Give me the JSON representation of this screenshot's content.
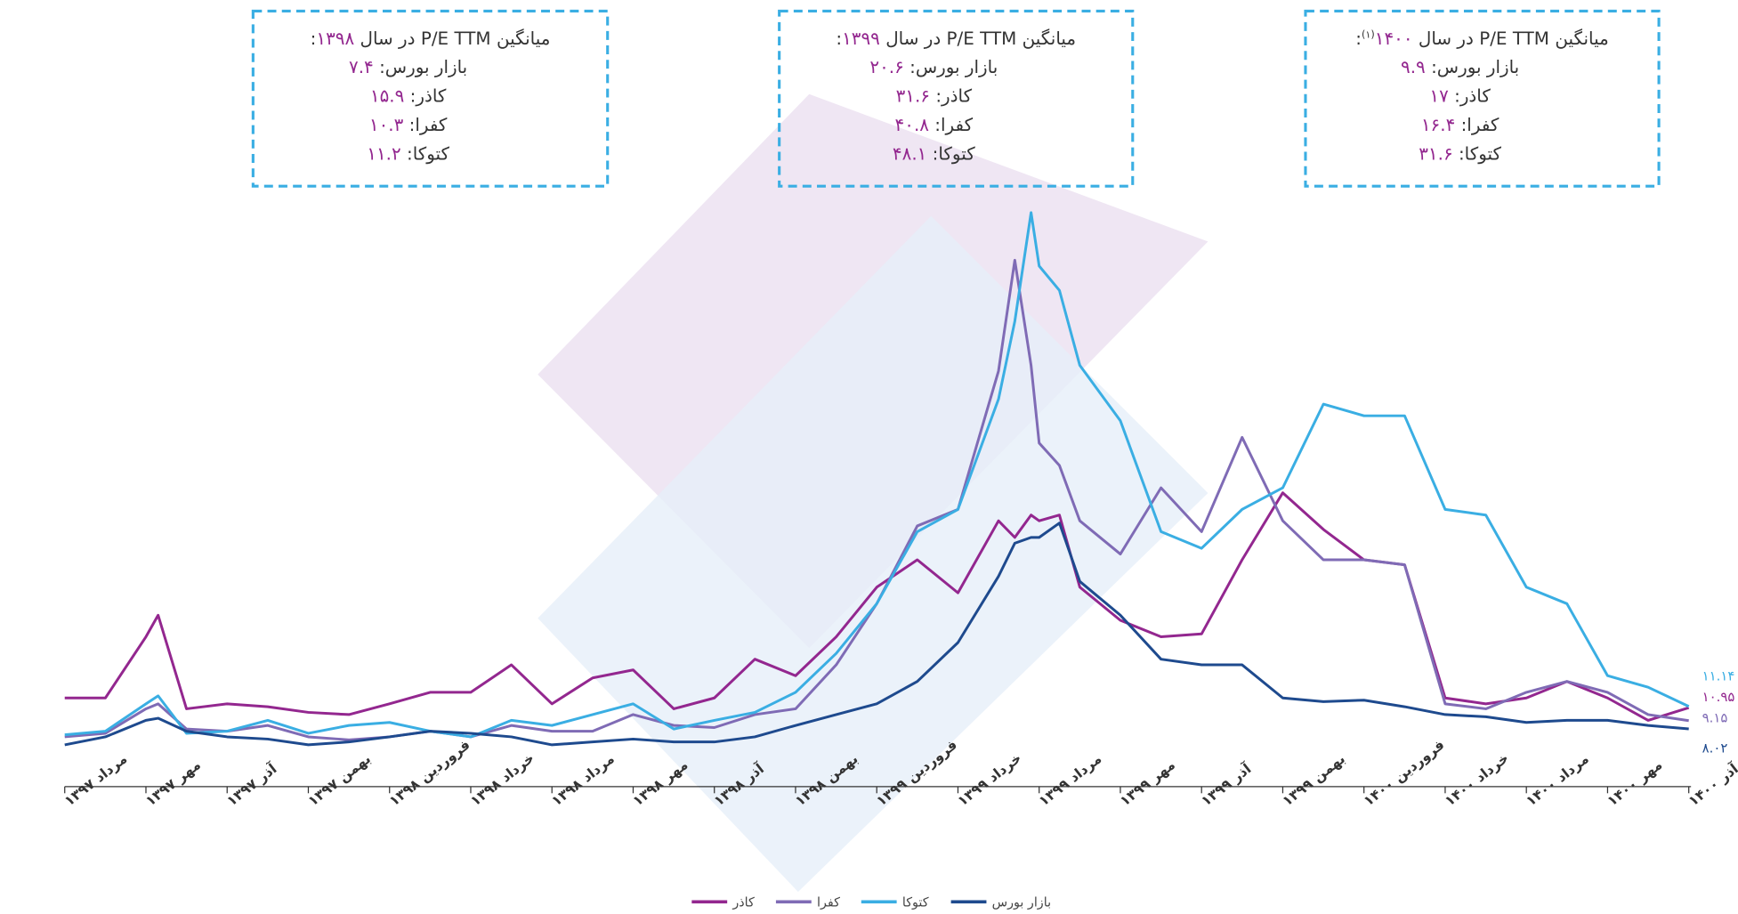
{
  "chart_data": {
    "type": "line",
    "x": [
      0,
      1,
      2,
      2.3,
      3,
      4,
      5,
      6,
      7,
      8,
      9,
      10,
      11,
      12,
      13,
      14,
      15,
      16,
      17,
      18,
      19,
      20,
      21,
      22,
      23,
      23.4,
      23.8,
      24,
      24.5,
      25,
      26,
      27,
      28,
      29,
      30,
      31,
      32,
      33,
      34,
      35,
      36,
      37,
      38,
      39,
      40
    ],
    "xlim": [
      0,
      40
    ],
    "ylim": [
      0,
      85
    ],
    "xticks": [
      {
        "value": 0,
        "label": "مرداد ۱۳۹۷"
      },
      {
        "value": 2,
        "label": "مهر ۱۳۹۷"
      },
      {
        "value": 4,
        "label": "آذر ۱۳۹۷"
      },
      {
        "value": 6,
        "label": "بهمن ۱۳۹۷"
      },
      {
        "value": 8,
        "label": "فروردین ۱۳۹۸"
      },
      {
        "value": 10,
        "label": "خرداد ۱۳۹۸"
      },
      {
        "value": 12,
        "label": "مرداد ۱۳۹۸"
      },
      {
        "value": 14,
        "label": "مهر ۱۳۹۸"
      },
      {
        "value": 16,
        "label": "آذر ۱۳۹۸"
      },
      {
        "value": 18,
        "label": "بهمن ۱۳۹۸"
      },
      {
        "value": 20,
        "label": "فروردین ۱۳۹۹"
      },
      {
        "value": 22,
        "label": "خرداد ۱۳۹۹"
      },
      {
        "value": 24,
        "label": "مرداد ۱۳۹۹"
      },
      {
        "value": 26,
        "label": "مهر ۱۳۹۹"
      },
      {
        "value": 28,
        "label": "آذر ۱۳۹۹"
      },
      {
        "value": 30,
        "label": "بهمن ۱۳۹۹"
      },
      {
        "value": 32,
        "label": "فروردین ۱۴۰۰"
      },
      {
        "value": 34,
        "label": "خرداد ۱۴۰۰"
      },
      {
        "value": 36,
        "label": "مرداد ۱۴۰۰"
      },
      {
        "value": 38,
        "label": "مهر ۱۴۰۰"
      },
      {
        "value": 40,
        "label": "آذر ۱۴۰۰"
      }
    ],
    "series": [
      {
        "name": "کاذر",
        "color": "#93278f",
        "end_label": "۱۰.۹۵",
        "values": [
          12.3,
          12.3,
          20.8,
          23.8,
          10.8,
          11.5,
          11.1,
          10.3,
          10.0,
          11.5,
          13.1,
          13.1,
          16.9,
          11.5,
          15.1,
          16.2,
          10.8,
          12.3,
          17.7,
          15.4,
          20.8,
          27.7,
          31.5,
          26.9,
          36.9,
          34.6,
          37.7,
          36.9,
          37.7,
          27.7,
          23.1,
          20.8,
          21.2,
          31.5,
          40.8,
          35.7,
          31.5,
          30.8,
          12.3,
          11.5,
          12.3,
          14.6,
          12.3,
          9.2,
          10.95
        ]
      },
      {
        "name": "کفرا",
        "color": "#7f6bb5",
        "end_label": "۹.۱۵",
        "values": [
          6.9,
          7.4,
          10.8,
          11.5,
          8.0,
          7.7,
          8.5,
          6.9,
          6.5,
          6.9,
          7.7,
          6.9,
          8.5,
          7.7,
          7.7,
          10.0,
          8.5,
          8.2,
          10.0,
          10.8,
          16.9,
          25.4,
          36.2,
          38.5,
          57.7,
          73.1,
          58.5,
          47.7,
          44.6,
          36.9,
          32.3,
          41.5,
          35.4,
          48.5,
          36.9,
          31.5,
          31.5,
          30.8,
          11.5,
          10.8,
          13.1,
          14.6,
          13.1,
          10.0,
          9.15
        ]
      },
      {
        "name": "کتوکا",
        "color": "#3aaee3",
        "end_label": "۱۱.۱۴",
        "values": [
          7.2,
          7.7,
          11.5,
          12.6,
          7.4,
          7.7,
          9.2,
          7.4,
          8.5,
          8.9,
          7.7,
          6.9,
          9.2,
          8.5,
          10.0,
          11.5,
          8.0,
          9.2,
          10.3,
          13.1,
          18.5,
          25.4,
          35.4,
          38.5,
          53.8,
          64.6,
          79.7,
          72.3,
          68.9,
          58.5,
          50.8,
          35.4,
          33.1,
          38.5,
          41.5,
          53.1,
          51.5,
          51.5,
          38.5,
          37.7,
          27.7,
          25.4,
          15.4,
          13.8,
          11.14
        ]
      },
      {
        "name": "بازار بورس",
        "color": "#1e4a8e",
        "end_label": "۸.۰۲",
        "values": [
          5.8,
          6.9,
          9.2,
          9.5,
          7.7,
          6.9,
          6.6,
          5.8,
          6.2,
          6.9,
          7.7,
          7.4,
          6.9,
          5.8,
          6.2,
          6.6,
          6.2,
          6.2,
          6.9,
          8.5,
          10.0,
          11.5,
          14.6,
          20.0,
          29.2,
          33.8,
          34.6,
          34.6,
          36.6,
          28.5,
          23.8,
          17.7,
          16.9,
          16.9,
          12.3,
          11.8,
          12.0,
          11.1,
          10.0,
          9.7,
          8.9,
          9.2,
          9.2,
          8.5,
          8.02
        ]
      }
    ],
    "annotations": [
      {
        "title_prefix": "میانگین P/E TTM در سال",
        "year": "۱۳۹۸",
        "title_suffix": ":",
        "lines": [
          {
            "label": "بازار بورس:",
            "value": "۷.۴"
          },
          {
            "label": "کاذر:",
            "value": "۱۵.۹"
          },
          {
            "label": "کفرا:",
            "value": "۱۰.۳"
          },
          {
            "label": "کتوکا:",
            "value": "۱۱.۲"
          }
        ]
      },
      {
        "title_prefix": "میانگین P/E TTM در سال",
        "year": "۱۳۹۹",
        "title_suffix": ":",
        "lines": [
          {
            "label": "بازار بورس:",
            "value": "۲۰.۶"
          },
          {
            "label": "کاذر:",
            "value": "۳۱.۶"
          },
          {
            "label": "کفرا:",
            "value": "۴۰.۸"
          },
          {
            "label": "کتوکا:",
            "value": "۴۸.۱"
          }
        ]
      },
      {
        "title_prefix": "میانگین P/E TTM در سال",
        "year": "۱۴۰۰",
        "note": "(۱)",
        "title_suffix": ":",
        "lines": [
          {
            "label": "بازار بورس:",
            "value": "۹.۹"
          },
          {
            "label": "کاذر:",
            "value": "۱۷"
          },
          {
            "label": "کفرا:",
            "value": "۱۶.۴"
          },
          {
            "label": "کتوکا:",
            "value": "۳۱.۶"
          }
        ]
      }
    ]
  }
}
